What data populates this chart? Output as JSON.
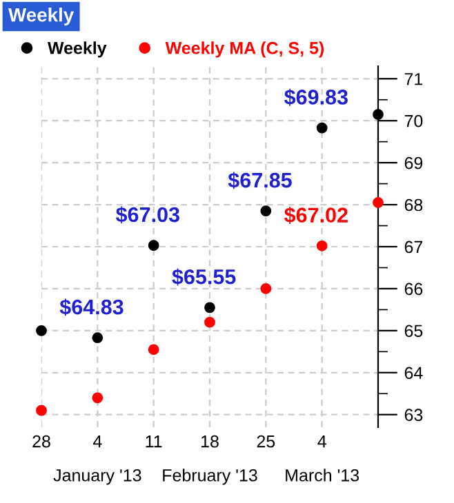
{
  "chart_data": {
    "type": "scatter",
    "title": "Weekly",
    "x": [
      "2013-01-28",
      "2013-02-04",
      "2013-02-11",
      "2013-02-18",
      "2013-02-25",
      "2013-03-04",
      "2013-03-11"
    ],
    "series": [
      {
        "name": "Weekly",
        "color": "#000000",
        "values": [
          65.0,
          64.83,
          67.03,
          65.55,
          67.85,
          69.83,
          70.15
        ],
        "value_labels": [
          null,
          "$64.83",
          "$67.03",
          "$65.55",
          "$67.85",
          "$69.83",
          null
        ]
      },
      {
        "name": "Weekly MA (C, S, 5)",
        "color": "#ff0000",
        "values": [
          63.1,
          63.4,
          64.55,
          65.2,
          66.0,
          67.02,
          68.05
        ],
        "value_labels": [
          null,
          null,
          null,
          null,
          null,
          "$67.02",
          null
        ]
      }
    ],
    "xlim": [
      "2013-01-28",
      "2013-03-11"
    ],
    "xticks": [
      {
        "value": "2013-01-28",
        "label": "28"
      },
      {
        "value": "2013-02-04",
        "label": "4"
      },
      {
        "value": "2013-02-11",
        "label": "11"
      },
      {
        "value": "2013-02-18",
        "label": "18"
      },
      {
        "value": "2013-02-25",
        "label": "25"
      },
      {
        "value": "2013-03-04",
        "label": "4"
      }
    ],
    "ylim": [
      62.7,
      71.3
    ],
    "yticks": [
      63,
      {
        "value": 63.5,
        "label": null
      },
      64,
      {
        "value": 64.5,
        "label": null
      },
      65,
      {
        "value": 65.5,
        "label": null
      },
      66,
      {
        "value": 66.5,
        "label": null
      },
      67,
      {
        "value": 67.5,
        "label": null
      },
      68,
      {
        "value": 68.5,
        "label": null
      },
      69,
      {
        "value": 69.5,
        "label": null
      },
      70,
      {
        "value": 70.5,
        "label": null
      },
      71
    ],
    "annotations": [
      "January '13",
      "February '13",
      "March '13"
    ],
    "grid": true,
    "legend": "top left",
    "marker": "circle"
  }
}
